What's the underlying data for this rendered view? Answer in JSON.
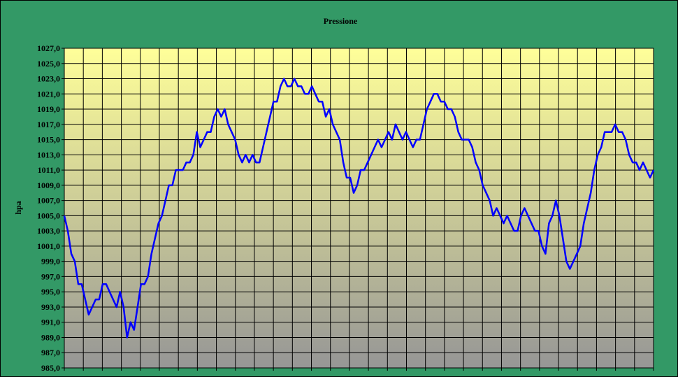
{
  "chart_data": {
    "type": "line",
    "title": "Pressione",
    "ylabel": "hpa",
    "ylim": [
      985,
      1027
    ],
    "yticks": [
      {
        "value": 985,
        "label": "985,0"
      },
      {
        "value": 987,
        "label": "987,0"
      },
      {
        "value": 989,
        "label": "989,0"
      },
      {
        "value": 991,
        "label": "991,0"
      },
      {
        "value": 993,
        "label": "993,0"
      },
      {
        "value": 995,
        "label": "995,0"
      },
      {
        "value": 997,
        "label": "997,0"
      },
      {
        "value": 999,
        "label": "999,0"
      },
      {
        "value": 1001,
        "label": "1001,0"
      },
      {
        "value": 1003,
        "label": "1003,0"
      },
      {
        "value": 1005,
        "label": "1005,0"
      },
      {
        "value": 1007,
        "label": "1007,0"
      },
      {
        "value": 1009,
        "label": "1009,0"
      },
      {
        "value": 1011,
        "label": "1011,0"
      },
      {
        "value": 1013,
        "label": "1013,0"
      },
      {
        "value": 1015,
        "label": "1015,0"
      },
      {
        "value": 1017,
        "label": "1017,0"
      },
      {
        "value": 1019,
        "label": "1019,0"
      },
      {
        "value": 1021,
        "label": "1021,0"
      },
      {
        "value": 1023,
        "label": "1023,0"
      },
      {
        "value": 1025,
        "label": "1025,0"
      },
      {
        "value": 1027,
        "label": "1027,0"
      }
    ],
    "grid": true,
    "color": "#0000ff",
    "values": [
      1005,
      1003,
      1000,
      999,
      996,
      996,
      994,
      992,
      993,
      994,
      994,
      996,
      996,
      995,
      994,
      993,
      995,
      993,
      989,
      991,
      990,
      993,
      996,
      996,
      997,
      1000,
      1002,
      1004,
      1005,
      1007,
      1009,
      1009,
      1011,
      1011,
      1011,
      1012,
      1012,
      1013,
      1016,
      1014,
      1015,
      1016,
      1016,
      1018,
      1019,
      1018,
      1019,
      1017,
      1016,
      1015,
      1013,
      1012,
      1013,
      1012,
      1013,
      1012,
      1012,
      1014,
      1016,
      1018,
      1020,
      1020,
      1022,
      1023,
      1022,
      1022,
      1023,
      1022,
      1022,
      1021,
      1021,
      1022,
      1021,
      1020,
      1020,
      1018,
      1019,
      1017,
      1016,
      1015,
      1012,
      1010,
      1010,
      1008,
      1009,
      1011,
      1011,
      1012,
      1013,
      1014,
      1015,
      1014,
      1015,
      1016,
      1015,
      1017,
      1016,
      1015,
      1016,
      1015,
      1014,
      1015,
      1015,
      1017,
      1019,
      1020,
      1021,
      1021,
      1020,
      1020,
      1019,
      1019,
      1018,
      1016,
      1015,
      1015,
      1015,
      1014,
      1012,
      1011,
      1009,
      1008,
      1007,
      1005,
      1006,
      1005,
      1004,
      1005,
      1004,
      1003,
      1003,
      1005,
      1006,
      1005,
      1004,
      1003,
      1003,
      1001,
      1000,
      1004,
      1005,
      1007,
      1005,
      1002,
      999,
      998,
      999,
      1000,
      1001,
      1004,
      1006,
      1008,
      1011,
      1013,
      1014,
      1016,
      1016,
      1016,
      1017,
      1016,
      1016,
      1015,
      1013,
      1012,
      1012,
      1011,
      1012,
      1011,
      1010,
      1011
    ]
  }
}
